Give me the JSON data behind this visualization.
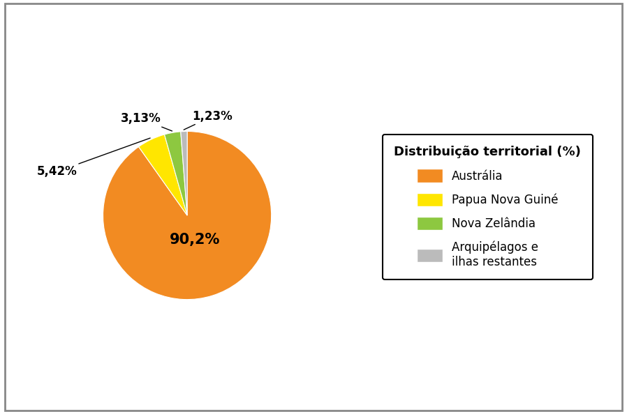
{
  "title": "Distribuição territorial (%)",
  "labels": [
    "Austrália",
    "Papua Nova Guiné",
    "Nova Zelândia",
    "Arquipélagos e\nilhas restantes"
  ],
  "values": [
    90.2,
    5.42,
    3.13,
    1.23
  ],
  "colors": [
    "#F28B22",
    "#FFE600",
    "#8DC840",
    "#BBBBBB"
  ],
  "pct_labels": [
    "90,2%",
    "5,42%",
    "3,13%",
    "1,23%"
  ],
  "background_color": "#FFFFFF",
  "border_color": "#888888",
  "startangle": 90,
  "legend_fontsize": 12,
  "legend_title_fontsize": 13
}
